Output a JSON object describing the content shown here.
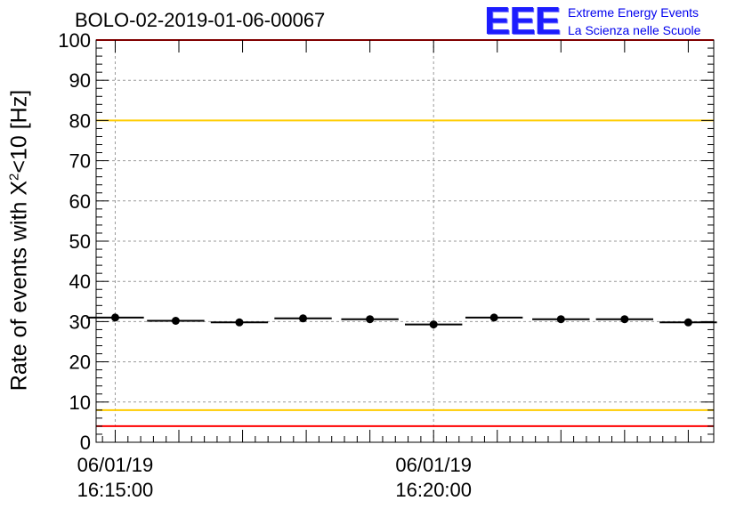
{
  "header": {
    "run_title": "BOLO-02-2019-01-06-00067"
  },
  "logo": {
    "mark": "EEE",
    "line1": "Extreme Energy Events",
    "line2": "La Scienza nelle Scuole",
    "color": "#0000ee"
  },
  "chart_data": {
    "type": "scatter",
    "ylabel_pre": "Rate of events with X",
    "ylabel_sup": "2",
    "ylabel_post": "<10 [Hz]",
    "ylim": [
      0,
      100
    ],
    "y_ticks": [
      "0",
      "10",
      "20",
      "30",
      "40",
      "50",
      "60",
      "70",
      "80",
      "90",
      "100"
    ],
    "x_range_minutes": [
      -0.3,
      9.4
    ],
    "x_tick_labels": [
      {
        "minute": 0,
        "date": "06/01/19",
        "time": "16:15:00"
      },
      {
        "minute": 5,
        "date": "06/01/19",
        "time": "16:20:00"
      }
    ],
    "grid": true,
    "series": [
      {
        "bin_minutes": 0.9,
        "x": [
          0.0,
          0.95,
          1.95,
          2.95,
          4.0,
          5.0,
          5.95,
          7.0,
          8.0,
          9.0
        ],
        "y": [
          31.0,
          30.2,
          29.8,
          30.8,
          30.6,
          29.3,
          31.0,
          30.6,
          30.6,
          29.8
        ],
        "color": "#000000"
      }
    ],
    "reference_lines": [
      {
        "y": 100,
        "color": "#ff0000"
      },
      {
        "y": 80,
        "color": "#ffcc00"
      },
      {
        "y": 8,
        "color": "#ffcc00"
      },
      {
        "y": 4,
        "color": "#ff0000"
      }
    ]
  }
}
